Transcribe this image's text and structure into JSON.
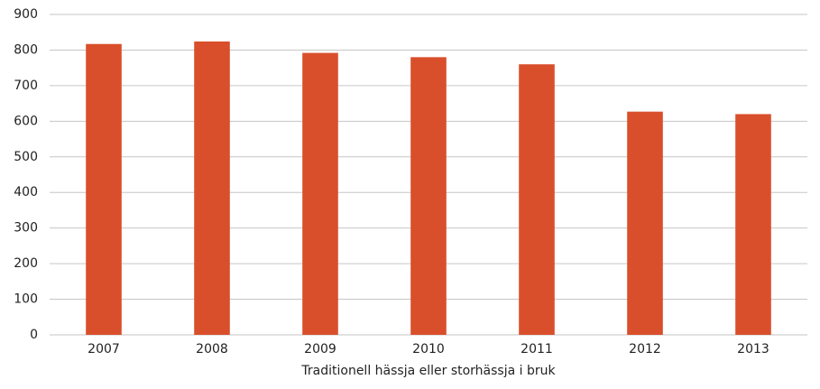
{
  "chart_data": {
    "type": "bar",
    "x_label": "Traditionell hässja eller storhässja i bruk",
    "categories": [
      "2007",
      "2008",
      "2009",
      "2010",
      "2011",
      "2012",
      "2013"
    ],
    "values": [
      817,
      824,
      792,
      780,
      760,
      627,
      620
    ],
    "color": "#d94f2b",
    "ylim": [
      0,
      900
    ],
    "yticks": [
      0,
      100,
      200,
      300,
      400,
      500,
      600,
      700,
      800,
      900
    ],
    "grid": true
  }
}
